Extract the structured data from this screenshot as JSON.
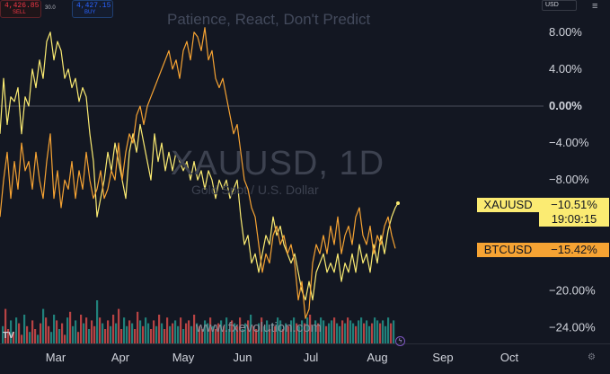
{
  "header": {
    "sell_price": "4,426.85",
    "sell_label": "SELL",
    "spread": "30.0",
    "buy_price": "4,427.15",
    "buy_label": "BUY",
    "currency": "USD",
    "title": "Patience, React, Don't Predict"
  },
  "watermark": {
    "symbol": "XAUUSD, 1D",
    "description": "Gold Spot / U.S. Dollar",
    "url": "www.fxevolution.com"
  },
  "tags": {
    "xau_name": "XAUUSD",
    "xau_value": "−10.51%",
    "xau_countdown": "19:09:15",
    "btc_name": "BTCUSD",
    "btc_value": "−15.42%"
  },
  "logo_text": "TV",
  "colors": {
    "background": "#131722",
    "xau_line": "#fbeb72",
    "btc_line": "#f6a333",
    "volume_up": "#26a69a",
    "volume_down": "#ef5350"
  },
  "chart_data": {
    "type": "line",
    "title": "Patience, React, Don't Predict",
    "xlabel": "",
    "ylabel": "",
    "x_ticks": [
      "Mar",
      "Apr",
      "May",
      "Jun",
      "Jul",
      "Aug",
      "Sep",
      "Oct"
    ],
    "y_ticks": [
      "8.00%",
      "4.00%",
      "0.00%",
      "−4.00%",
      "−8.00%",
      "−20.00%",
      "−24.00%"
    ],
    "ylim": [
      -26,
      11
    ],
    "baseline": 0,
    "grid": false,
    "legend": "right-axis-tags",
    "series": [
      {
        "name": "XAUUSD",
        "color": "#fbeb72",
        "points": [
          [
            0,
            -3
          ],
          [
            4,
            3
          ],
          [
            8,
            -2
          ],
          [
            12,
            1
          ],
          [
            16,
            0.5
          ],
          [
            20,
            2
          ],
          [
            24,
            -3
          ],
          [
            28,
            1
          ],
          [
            32,
            0
          ],
          [
            36,
            4
          ],
          [
            40,
            2
          ],
          [
            44,
            5
          ],
          [
            48,
            3
          ],
          [
            52,
            7
          ],
          [
            56,
            8
          ],
          [
            60,
            5
          ],
          [
            64,
            7
          ],
          [
            68,
            6
          ],
          [
            72,
            3
          ],
          [
            76,
            4
          ],
          [
            80,
            2
          ],
          [
            84,
            3
          ],
          [
            88,
            0.5
          ],
          [
            92,
            2
          ],
          [
            96,
            1
          ],
          [
            100,
            -3
          ],
          [
            104,
            -6
          ],
          [
            108,
            -12
          ],
          [
            112,
            -10
          ],
          [
            116,
            -8
          ],
          [
            120,
            -5
          ],
          [
            124,
            -7
          ],
          [
            128,
            -4
          ],
          [
            132,
            -6
          ],
          [
            136,
            -8
          ],
          [
            140,
            -10
          ],
          [
            144,
            -5
          ],
          [
            148,
            -3
          ],
          [
            152,
            -5
          ],
          [
            156,
            -2
          ],
          [
            160,
            -4
          ],
          [
            164,
            -6
          ],
          [
            168,
            -8
          ],
          [
            172,
            -3
          ],
          [
            176,
            -6
          ],
          [
            180,
            -4
          ],
          [
            184,
            -7
          ],
          [
            188,
            -5
          ],
          [
            192,
            -7
          ],
          [
            196,
            -5
          ],
          [
            200,
            -6
          ],
          [
            204,
            -7
          ],
          [
            208,
            -6
          ],
          [
            212,
            -8
          ],
          [
            216,
            -6
          ],
          [
            220,
            -8
          ],
          [
            224,
            -7
          ],
          [
            228,
            -9
          ],
          [
            232,
            -7
          ],
          [
            236,
            -8
          ],
          [
            240,
            -10
          ],
          [
            244,
            -8
          ],
          [
            248,
            -9
          ],
          [
            252,
            -8
          ],
          [
            256,
            -10
          ],
          [
            260,
            -9
          ],
          [
            264,
            -8
          ],
          [
            268,
            -12
          ],
          [
            272,
            -15
          ],
          [
            276,
            -14
          ],
          [
            280,
            -17
          ],
          [
            284,
            -16
          ],
          [
            288,
            -18
          ],
          [
            292,
            -16
          ],
          [
            296,
            -14
          ],
          [
            300,
            -15
          ],
          [
            304,
            -12
          ],
          [
            308,
            -14
          ],
          [
            312,
            -13
          ],
          [
            316,
            -15
          ],
          [
            320,
            -16
          ],
          [
            324,
            -17
          ],
          [
            328,
            -16
          ],
          [
            332,
            -18
          ],
          [
            336,
            -20
          ],
          [
            340,
            -21
          ],
          [
            344,
            -19
          ],
          [
            348,
            -21
          ],
          [
            352,
            -18
          ],
          [
            356,
            -17
          ],
          [
            360,
            -16
          ],
          [
            364,
            -18
          ],
          [
            368,
            -17
          ],
          [
            372,
            -18
          ],
          [
            376,
            -16
          ],
          [
            380,
            -19
          ],
          [
            384,
            -17
          ],
          [
            388,
            -18
          ],
          [
            392,
            -16
          ],
          [
            396,
            -18
          ],
          [
            400,
            -15
          ],
          [
            404,
            -17
          ],
          [
            408,
            -16
          ],
          [
            412,
            -18
          ],
          [
            416,
            -15
          ],
          [
            420,
            -17
          ],
          [
            424,
            -14
          ],
          [
            428,
            -16
          ],
          [
            432,
            -13.5
          ],
          [
            436,
            -12
          ],
          [
            440,
            -11
          ],
          [
            443,
            -10.51
          ]
        ]
      },
      {
        "name": "BTCUSD",
        "color": "#f6a333",
        "points": [
          [
            0,
            -12
          ],
          [
            4,
            -8
          ],
          [
            8,
            -5
          ],
          [
            12,
            -10
          ],
          [
            16,
            -6
          ],
          [
            20,
            -9
          ],
          [
            24,
            -4
          ],
          [
            28,
            -7
          ],
          [
            32,
            -6
          ],
          [
            36,
            -9
          ],
          [
            40,
            -5
          ],
          [
            44,
            -8
          ],
          [
            48,
            -10
          ],
          [
            52,
            -6
          ],
          [
            56,
            -3
          ],
          [
            60,
            -10
          ],
          [
            64,
            -7
          ],
          [
            68,
            -11
          ],
          [
            72,
            -8
          ],
          [
            76,
            -9
          ],
          [
            80,
            -6
          ],
          [
            84,
            -10
          ],
          [
            88,
            -7
          ],
          [
            92,
            -9
          ],
          [
            96,
            -5
          ],
          [
            100,
            -8
          ],
          [
            104,
            -10
          ],
          [
            108,
            -9
          ],
          [
            112,
            -7
          ],
          [
            116,
            -10
          ],
          [
            120,
            -9
          ],
          [
            124,
            -7
          ],
          [
            128,
            -8
          ],
          [
            132,
            -4
          ],
          [
            136,
            -8
          ],
          [
            140,
            -5
          ],
          [
            144,
            -3
          ],
          [
            148,
            -4
          ],
          [
            152,
            -1
          ],
          [
            156,
            0
          ],
          [
            160,
            -2
          ],
          [
            164,
            0
          ],
          [
            168,
            1
          ],
          [
            172,
            2
          ],
          [
            176,
            3
          ],
          [
            180,
            4
          ],
          [
            184,
            5
          ],
          [
            188,
            6
          ],
          [
            192,
            4
          ],
          [
            196,
            5
          ],
          [
            200,
            3
          ],
          [
            204,
            6
          ],
          [
            208,
            7
          ],
          [
            212,
            5
          ],
          [
            216,
            8
          ],
          [
            220,
            7.5
          ],
          [
            224,
            6
          ],
          [
            228,
            8.5
          ],
          [
            232,
            5
          ],
          [
            236,
            6
          ],
          [
            240,
            3
          ],
          [
            244,
            2
          ],
          [
            248,
            3
          ],
          [
            252,
            1
          ],
          [
            256,
            -1
          ],
          [
            260,
            -3
          ],
          [
            264,
            -2
          ],
          [
            268,
            -5
          ],
          [
            272,
            -8
          ],
          [
            276,
            -9
          ],
          [
            280,
            -11
          ],
          [
            284,
            -12
          ],
          [
            288,
            -15
          ],
          [
            292,
            -18
          ],
          [
            296,
            -16
          ],
          [
            300,
            -17
          ],
          [
            304,
            -14
          ],
          [
            308,
            -13
          ],
          [
            312,
            -15
          ],
          [
            316,
            -14
          ],
          [
            320,
            -16
          ],
          [
            324,
            -15
          ],
          [
            328,
            -17
          ],
          [
            332,
            -21
          ],
          [
            336,
            -19
          ],
          [
            340,
            -23
          ],
          [
            344,
            -22
          ],
          [
            348,
            -17
          ],
          [
            352,
            -15
          ],
          [
            356,
            -16
          ],
          [
            360,
            -14
          ],
          [
            364,
            -16
          ],
          [
            368,
            -13
          ],
          [
            372,
            -15
          ],
          [
            376,
            -12
          ],
          [
            380,
            -16
          ],
          [
            384,
            -14
          ],
          [
            388,
            -13
          ],
          [
            392,
            -15
          ],
          [
            396,
            -12
          ],
          [
            400,
            -11
          ],
          [
            404,
            -14
          ],
          [
            408,
            -15
          ],
          [
            412,
            -13
          ],
          [
            416,
            -16
          ],
          [
            420,
            -14
          ],
          [
            424,
            -15
          ],
          [
            428,
            -13
          ],
          [
            432,
            -12
          ],
          [
            436,
            -14
          ],
          [
            440,
            -15.42
          ]
        ]
      }
    ],
    "volume": {
      "start_x": 2,
      "step": 3,
      "values": [
        6,
        12,
        5,
        8,
        4,
        9,
        7,
        3,
        10,
        6,
        4,
        8,
        5,
        3,
        7,
        12,
        9,
        6,
        4,
        10,
        8,
        5,
        7,
        3,
        9,
        11,
        6,
        8,
        4,
        10,
        7,
        9,
        5,
        8,
        6,
        15,
        9,
        7,
        5,
        8,
        6,
        10,
        7,
        12,
        5,
        9,
        6,
        8,
        7,
        5,
        11,
        8,
        6,
        9,
        7,
        5,
        8,
        6,
        10,
        7,
        5,
        9,
        6,
        7,
        8,
        6,
        9,
        5,
        7,
        8,
        6,
        10,
        7,
        6,
        5,
        8,
        7,
        9,
        6,
        5,
        7,
        8,
        6,
        9,
        5,
        8,
        7,
        6,
        9,
        5,
        7,
        8,
        10,
        6,
        5,
        7,
        9,
        6,
        8,
        5,
        7,
        6,
        9,
        8,
        5,
        7,
        6,
        8,
        9,
        7,
        6,
        8,
        7,
        9,
        10,
        6,
        8,
        7,
        9,
        8,
        6,
        7,
        8,
        9,
        7,
        6,
        8,
        7,
        9,
        8,
        7,
        6,
        8,
        9,
        7,
        8,
        6,
        7,
        9,
        8,
        7,
        8,
        6,
        9,
        7,
        8
      ],
      "colors": [
        1,
        0,
        0,
        1,
        0,
        1,
        0,
        0,
        1,
        0,
        1,
        0,
        0,
        1,
        0,
        1,
        0,
        0,
        1,
        1,
        0,
        1,
        0,
        0,
        1,
        0,
        1,
        1,
        0,
        0,
        1,
        0,
        1,
        0,
        0,
        1,
        0,
        1,
        0,
        0,
        1,
        0,
        1,
        0,
        0,
        1,
        1,
        0,
        1,
        0,
        0,
        1,
        0,
        1,
        1,
        0,
        0,
        1,
        0,
        1,
        0,
        0,
        1,
        0,
        1,
        1,
        0,
        1,
        0,
        0,
        1,
        0,
        1,
        0,
        0,
        1,
        1,
        0,
        1,
        0,
        0,
        1,
        0,
        1,
        1,
        0,
        1,
        0,
        0,
        1,
        1,
        0,
        1,
        0,
        0,
        1,
        0,
        1,
        1,
        0,
        1,
        0,
        1,
        1,
        0,
        1,
        0,
        1,
        1,
        0,
        1,
        1,
        0,
        1,
        0,
        1,
        1,
        0,
        1,
        1,
        0,
        1,
        1,
        0,
        1,
        1,
        0,
        1,
        0,
        1,
        1,
        0,
        1,
        1,
        0,
        1,
        1,
        0,
        1,
        1,
        0,
        1,
        1,
        1,
        0,
        1
      ]
    }
  }
}
